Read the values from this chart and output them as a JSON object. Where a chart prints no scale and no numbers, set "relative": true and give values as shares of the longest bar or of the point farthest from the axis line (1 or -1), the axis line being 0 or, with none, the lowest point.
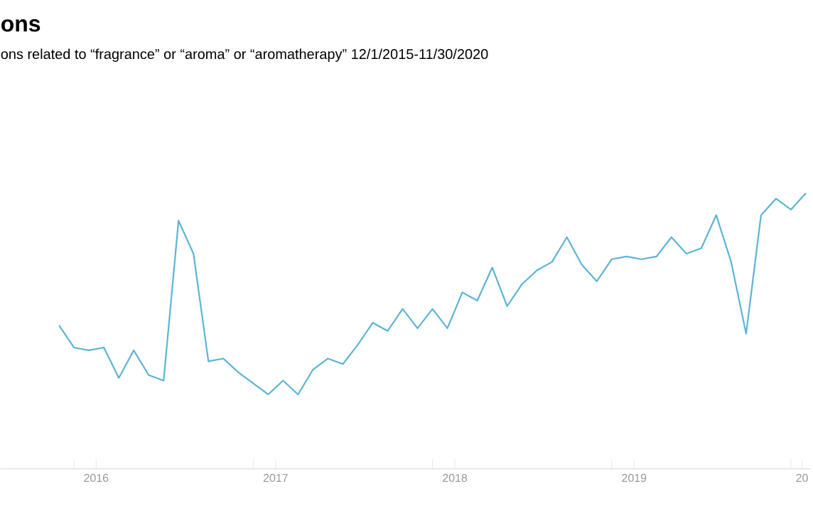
{
  "chart_data": {
    "type": "line",
    "title": "ons",
    "subtitle": "ons related to “fragrance” or “aroma” or “aromatherapy” 12/1/2015-11/30/2020",
    "relative": true,
    "color": "#5ab4d6",
    "x": [
      "2015-12",
      "2016-01",
      "2016-02",
      "2016-03",
      "2016-04",
      "2016-05",
      "2016-06",
      "2016-07",
      "2016-08",
      "2016-09",
      "2016-10",
      "2016-11",
      "2016-12",
      "2017-01",
      "2017-02",
      "2017-03",
      "2017-04",
      "2017-05",
      "2017-06",
      "2017-07",
      "2017-08",
      "2017-09",
      "2017-10",
      "2017-11",
      "2017-12",
      "2018-01",
      "2018-02",
      "2018-03",
      "2018-04",
      "2018-05",
      "2018-06",
      "2018-07",
      "2018-08",
      "2018-09",
      "2018-10",
      "2018-11",
      "2018-12",
      "2019-01",
      "2019-02",
      "2019-03",
      "2019-04",
      "2019-05",
      "2019-06",
      "2019-07",
      "2019-08",
      "2019-09",
      "2019-10",
      "2019-11",
      "2019-12",
      "2020-01",
      "2020-02"
    ],
    "values": [
      0.52,
      0.44,
      0.43,
      0.44,
      0.33,
      0.43,
      0.34,
      0.32,
      0.9,
      0.78,
      0.39,
      0.4,
      0.35,
      0.31,
      0.27,
      0.32,
      0.27,
      0.36,
      0.4,
      0.38,
      0.45,
      0.53,
      0.5,
      0.58,
      0.51,
      0.58,
      0.51,
      0.64,
      0.61,
      0.73,
      0.59,
      0.67,
      0.72,
      0.75,
      0.84,
      0.74,
      0.68,
      0.76,
      0.77,
      0.76,
      0.77,
      0.84,
      0.78,
      0.8,
      0.92,
      0.75,
      0.49,
      0.92,
      0.98,
      0.94,
      1.0
    ],
    "xlim": [
      "2015-08-03",
      "2020-02-10"
    ],
    "xticks": [
      {
        "value": "2016-01-01",
        "label": null
      },
      {
        "value": "2017-01-01",
        "label": null
      },
      {
        "value": "2018-01-01",
        "label": null
      },
      {
        "value": "2019-01-01",
        "label": null
      },
      {
        "value": "2020-01-01",
        "label": null
      },
      {
        "value": "2016-02-15",
        "label": "2016"
      },
      {
        "value": "2017-02-15",
        "label": "2017"
      },
      {
        "value": "2018-02-15",
        "label": "2018"
      },
      {
        "value": "2019-02-15",
        "label": "2019"
      },
      {
        "value": "2020-01-24",
        "label": "20"
      }
    ]
  }
}
